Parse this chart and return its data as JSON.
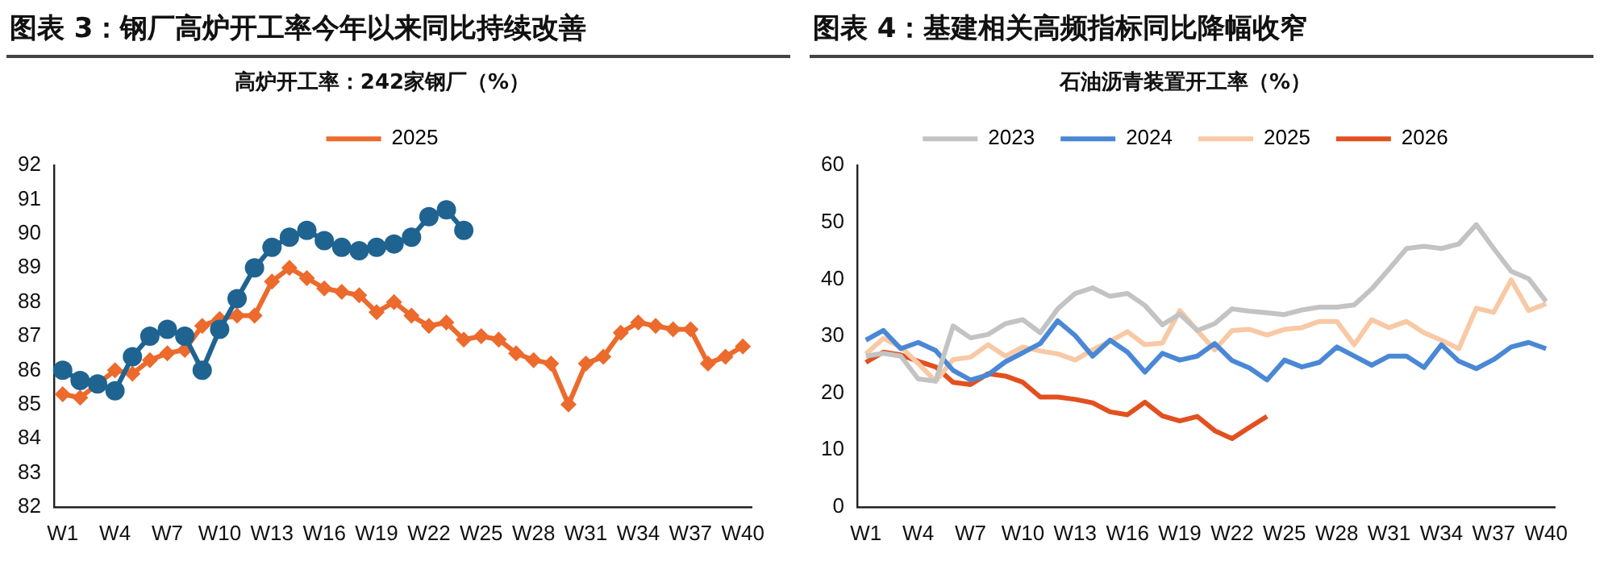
{
  "chart_data": [
    {
      "type": "line",
      "title": "图表 3：钢厂高炉开工率今年以来同比持续改善",
      "subtitle": "高炉开工率：242家钢厂（%）",
      "categories": [
        "W1",
        null,
        null,
        "W4",
        null,
        null,
        "W7",
        null,
        null,
        "W10",
        null,
        null,
        "W13",
        null,
        null,
        "W16",
        null,
        null,
        "W19",
        null,
        null,
        "W22",
        null,
        null,
        "W25",
        null,
        null,
        "W28",
        null,
        null,
        "W31",
        null,
        null,
        "W34",
        null,
        null,
        "W37",
        null,
        null,
        "W40"
      ],
      "series": [
        {
          "color": "#1f6391",
          "marker": "circle",
          "values": [
            86.0,
            85.7,
            85.6,
            85.4,
            86.4,
            87.0,
            87.2,
            87.0,
            86.0,
            87.2,
            88.1,
            89.0,
            89.6,
            89.9,
            90.1,
            89.8,
            89.6,
            89.5,
            89.6,
            89.7,
            89.9,
            90.5,
            90.7,
            90.1,
            null,
            null,
            null,
            null,
            null,
            null,
            null,
            null,
            null,
            null,
            null,
            null,
            null,
            null,
            null,
            null
          ]
        },
        {
          "name": "2025",
          "color": "#ec6a2c",
          "marker": "diamond",
          "values": [
            85.3,
            85.2,
            85.6,
            86.0,
            85.9,
            86.3,
            86.5,
            86.6,
            87.3,
            87.5,
            87.6,
            87.6,
            88.6,
            89.0,
            88.7,
            88.4,
            88.3,
            88.2,
            87.7,
            88.0,
            87.6,
            87.3,
            87.4,
            86.9,
            87.0,
            86.9,
            86.5,
            86.3,
            86.2,
            85.0,
            86.2,
            86.4,
            87.1,
            87.4,
            87.3,
            87.2,
            87.2,
            86.2,
            86.4,
            86.7
          ]
        }
      ],
      "ylim": [
        82,
        92
      ],
      "yticks": [
        82,
        83,
        84,
        85,
        86,
        87,
        88,
        89,
        90,
        91,
        92
      ],
      "grid": false,
      "legend": "top"
    },
    {
      "type": "line",
      "title": "图表 4：基建相关高频指标同比降幅收窄",
      "subtitle": "石油沥青装置开工率（%）",
      "categories": [
        "W1",
        null,
        null,
        "W4",
        null,
        null,
        "W7",
        null,
        null,
        "W10",
        null,
        null,
        "W13",
        null,
        null,
        "W16",
        null,
        null,
        "W19",
        null,
        null,
        "W22",
        null,
        null,
        "W25",
        null,
        null,
        "W28",
        null,
        null,
        "W31",
        null,
        null,
        "W34",
        null,
        null,
        "W37",
        null,
        null,
        "W40"
      ],
      "series": [
        {
          "name": "2023",
          "color": "#c3c3c3",
          "values": [
            26.5,
            27.0,
            26.5,
            22.5,
            22.1,
            31.8,
            29.7,
            30.3,
            32.2,
            32.9,
            30.6,
            34.8,
            37.5,
            38.5,
            37.0,
            37.5,
            35.4,
            32.0,
            33.9,
            31.0,
            32.2,
            34.8,
            34.4,
            34.1,
            33.8,
            34.6,
            35.1,
            35.1,
            35.5,
            38.3,
            41.8,
            45.4,
            45.8,
            45.4,
            46.2,
            49.6,
            45.4,
            41.4,
            40.1,
            36.1
          ]
        },
        {
          "name": "2024",
          "color": "#4a88d6",
          "values": [
            29.3,
            31.0,
            27.8,
            28.9,
            27.5,
            24.0,
            22.3,
            23.2,
            25.5,
            27.1,
            28.7,
            32.7,
            30.1,
            26.5,
            29.3,
            27.2,
            23.7,
            27.0,
            25.8,
            26.5,
            28.7,
            25.7,
            24.4,
            22.3,
            25.8,
            24.6,
            25.4,
            28.1,
            26.5,
            24.9,
            26.5,
            26.5,
            24.5,
            28.5,
            25.6,
            24.3,
            25.9,
            28.1,
            28.9,
            27.8
          ]
        },
        {
          "name": "2025",
          "color": "#f8c9a4",
          "values": [
            26.9,
            29.6,
            28.1,
            25.2,
            22.1,
            25.9,
            26.3,
            28.5,
            26.5,
            28.1,
            27.4,
            26.9,
            25.8,
            27.6,
            29.1,
            30.8,
            28.5,
            28.8,
            34.5,
            31.0,
            27.6,
            31.0,
            31.2,
            30.2,
            31.2,
            31.5,
            32.6,
            32.6,
            28.5,
            32.9,
            31.5,
            32.6,
            30.6,
            29.3,
            27.8,
            34.9,
            34.2,
            39.9,
            34.5,
            35.7
          ]
        },
        {
          "name": "2026",
          "color": "#e2501f",
          "values": [
            25.4,
            27.2,
            26.7,
            25.6,
            24.6,
            21.9,
            21.5,
            23.4,
            23.0,
            21.9,
            19.3,
            19.3,
            18.9,
            18.3,
            16.7,
            16.2,
            18.4,
            16.0,
            15.1,
            15.9,
            13.4,
            12.0,
            14.0,
            15.9,
            null,
            null,
            null,
            null,
            null,
            null,
            null,
            null,
            null,
            null,
            null,
            null,
            null,
            null,
            null,
            null
          ]
        }
      ],
      "ylim": [
        0,
        60
      ],
      "yticks": [
        0,
        10,
        20,
        30,
        40,
        50,
        60
      ],
      "grid": false,
      "legend": "top"
    }
  ]
}
